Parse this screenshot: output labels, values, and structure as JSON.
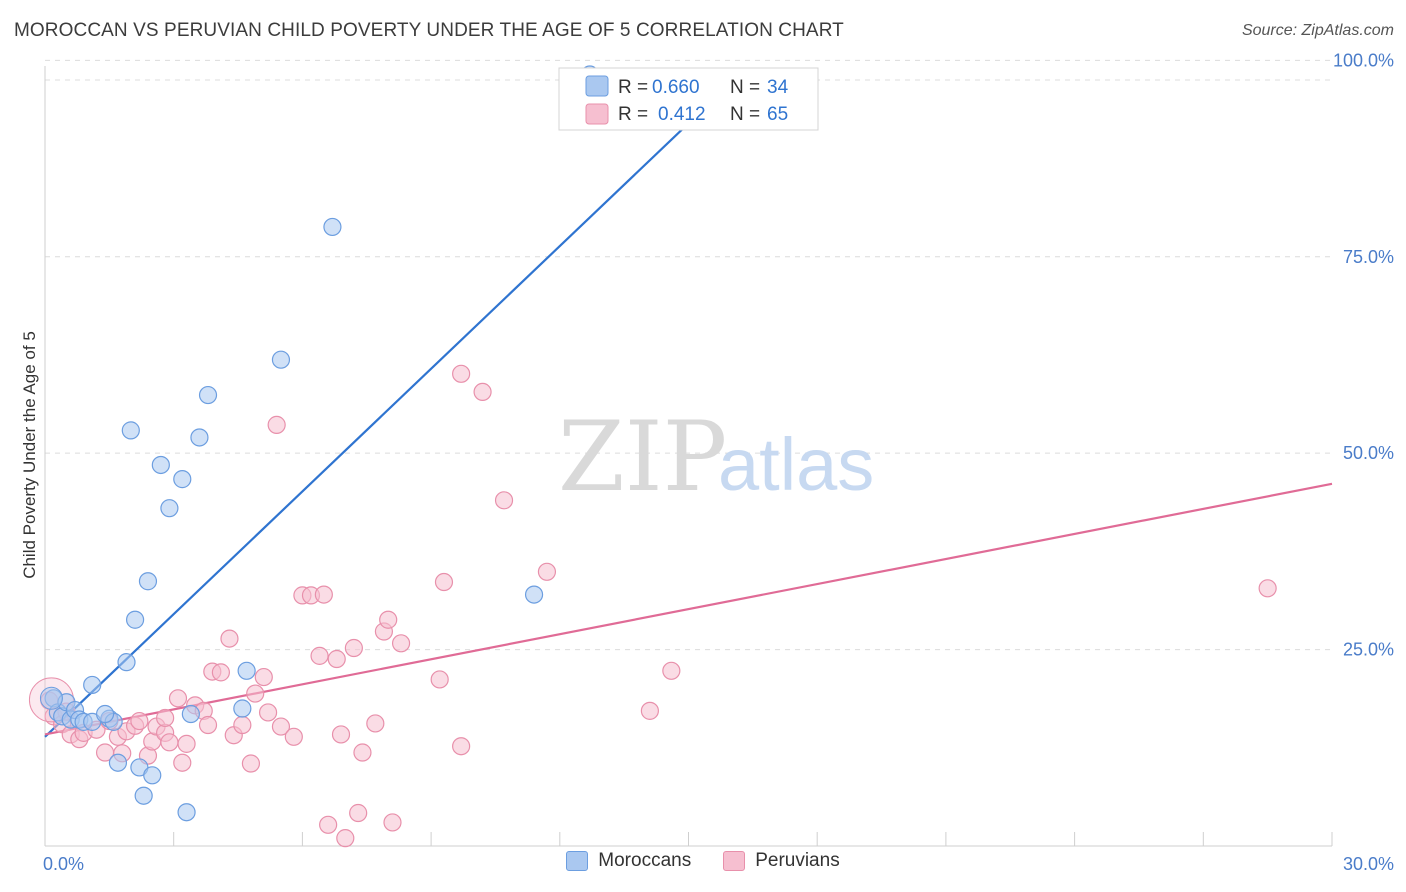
{
  "header": {
    "title": "MOROCCAN VS PERUVIAN CHILD POVERTY UNDER THE AGE OF 5 CORRELATION CHART",
    "source": "Source: ZipAtlas.com"
  },
  "watermark": {
    "zip": "ZIP",
    "atlas": "atlas"
  },
  "legend_box": {
    "rows": [
      {
        "r_label": "R = ",
        "r_value": "0.660",
        "n_label": "N = ",
        "n_value": "34"
      },
      {
        "r_label": "R = ",
        "r_value": "0.412",
        "n_label": "N = ",
        "n_value": "65"
      }
    ]
  },
  "legend_bottom": {
    "series1": "Moroccans",
    "series2": "Peruvians"
  },
  "colors": {
    "blue_fill": "#aac8f0",
    "blue_stroke": "#6c9ee0",
    "blue_line": "#2f74d0",
    "pink_fill": "#f6bfd0",
    "pink_stroke": "#e890ab",
    "pink_line": "#e06b96",
    "axis_label": "#4a7cc9",
    "grid": "#dcdcdc"
  },
  "chart_data": {
    "type": "scatter",
    "title": "MOROCCAN VS PERUVIAN CHILD POVERTY UNDER THE AGE OF 5 CORRELATION CHART",
    "xlabel": "",
    "ylabel": "Child Poverty Under the Age of 5",
    "xlim": [
      0,
      30
    ],
    "ylim": [
      0,
      100
    ],
    "x_tick_labels": [
      {
        "value": 0,
        "label": "0.0%"
      },
      {
        "value": 30,
        "label": "30.0%"
      }
    ],
    "y_tick_labels": [
      {
        "value": 25,
        "label": "25.0%"
      },
      {
        "value": 50,
        "label": "50.0%"
      },
      {
        "value": 75,
        "label": "75.0%"
      },
      {
        "value": 100,
        "label": "100.0%"
      }
    ],
    "series": [
      {
        "name": "Moroccans",
        "r": 0.66,
        "n": 34,
        "trend": {
          "x": [
            0,
            15.1
          ],
          "y": [
            13.9,
            92.5
          ]
        },
        "points": [
          [
            0.2,
            18.8
          ],
          [
            0.3,
            17
          ],
          [
            0.4,
            16.5
          ],
          [
            0.5,
            18.3
          ],
          [
            0.6,
            16.1
          ],
          [
            0.7,
            17.3
          ],
          [
            0.8,
            16.1
          ],
          [
            0.9,
            15.8
          ],
          [
            1.1,
            15.8
          ],
          [
            1.5,
            16.2
          ],
          [
            1.6,
            15.8
          ],
          [
            1.1,
            20.5
          ],
          [
            1.4,
            16.8
          ],
          [
            1.7,
            10.6
          ],
          [
            2.2,
            10
          ],
          [
            2.3,
            6.4
          ],
          [
            2.5,
            9
          ],
          [
            2.1,
            28.8
          ],
          [
            1.9,
            23.4
          ],
          [
            2.4,
            33.7
          ],
          [
            2.7,
            48.5
          ],
          [
            2.0,
            52.9
          ],
          [
            2.9,
            43
          ],
          [
            3.2,
            46.7
          ],
          [
            3.4,
            16.8
          ],
          [
            3.3,
            4.3
          ],
          [
            3.6,
            52
          ],
          [
            3.8,
            57.4
          ],
          [
            4.6,
            17.5
          ],
          [
            4.7,
            22.3
          ],
          [
            5.5,
            61.9
          ],
          [
            6.7,
            78.8
          ],
          [
            11.4,
            32
          ],
          [
            12.7,
            98.2
          ]
        ]
      },
      {
        "name": "Peruvians",
        "r": 0.412,
        "n": 65,
        "trend": {
          "x": [
            0,
            30
          ],
          "y": [
            14.2,
            46.1
          ]
        },
        "points": [
          [
            0.1,
            18.5
          ],
          [
            0.2,
            16.5
          ],
          [
            0.4,
            15.5
          ],
          [
            0.5,
            17.1
          ],
          [
            0.6,
            14.2
          ],
          [
            0.8,
            13.6
          ],
          [
            0.9,
            14.4
          ],
          [
            1.2,
            14.8
          ],
          [
            1.5,
            15.9
          ],
          [
            1.4,
            11.9
          ],
          [
            1.7,
            13.9
          ],
          [
            1.8,
            11.8
          ],
          [
            1.9,
            14.6
          ],
          [
            2.1,
            15.3
          ],
          [
            2.2,
            15.9
          ],
          [
            2.4,
            11.5
          ],
          [
            2.5,
            13.3
          ],
          [
            2.6,
            15.2
          ],
          [
            2.8,
            14.4
          ],
          [
            2.9,
            13.2
          ],
          [
            3.1,
            18.8
          ],
          [
            3.2,
            10.6
          ],
          [
            3.3,
            13
          ],
          [
            3.5,
            17.9
          ],
          [
            3.7,
            17.2
          ],
          [
            3.8,
            15.4
          ],
          [
            3.9,
            22.2
          ],
          [
            4.1,
            22.1
          ],
          [
            4.3,
            26.4
          ],
          [
            4.4,
            14.1
          ],
          [
            4.6,
            15.4
          ],
          [
            4.8,
            10.5
          ],
          [
            4.9,
            19.4
          ],
          [
            5.1,
            21.5
          ],
          [
            5.2,
            17
          ],
          [
            5.4,
            53.6
          ],
          [
            5.5,
            15.2
          ],
          [
            5.8,
            13.9
          ],
          [
            6.0,
            31.9
          ],
          [
            6.2,
            31.9
          ],
          [
            6.4,
            24.2
          ],
          [
            6.5,
            32
          ],
          [
            6.6,
            2.7
          ],
          [
            6.8,
            23.8
          ],
          [
            7.0,
            1
          ],
          [
            7.2,
            25.2
          ],
          [
            7.3,
            4.2
          ],
          [
            7.4,
            11.9
          ],
          [
            7.7,
            15.6
          ],
          [
            7.9,
            27.3
          ],
          [
            8.0,
            28.8
          ],
          [
            8.1,
            3
          ],
          [
            8.3,
            25.8
          ],
          [
            9.2,
            21.2
          ],
          [
            9.3,
            33.6
          ],
          [
            9.7,
            12.7
          ],
          [
            9.7,
            60.1
          ],
          [
            10.2,
            57.8
          ],
          [
            10.7,
            44
          ],
          [
            11.7,
            34.9
          ],
          [
            14.1,
            17.2
          ],
          [
            14.6,
            22.3
          ],
          [
            28.5,
            32.8
          ],
          [
            6.9,
            14.2
          ],
          [
            2.8,
            16.3
          ]
        ]
      }
    ]
  }
}
